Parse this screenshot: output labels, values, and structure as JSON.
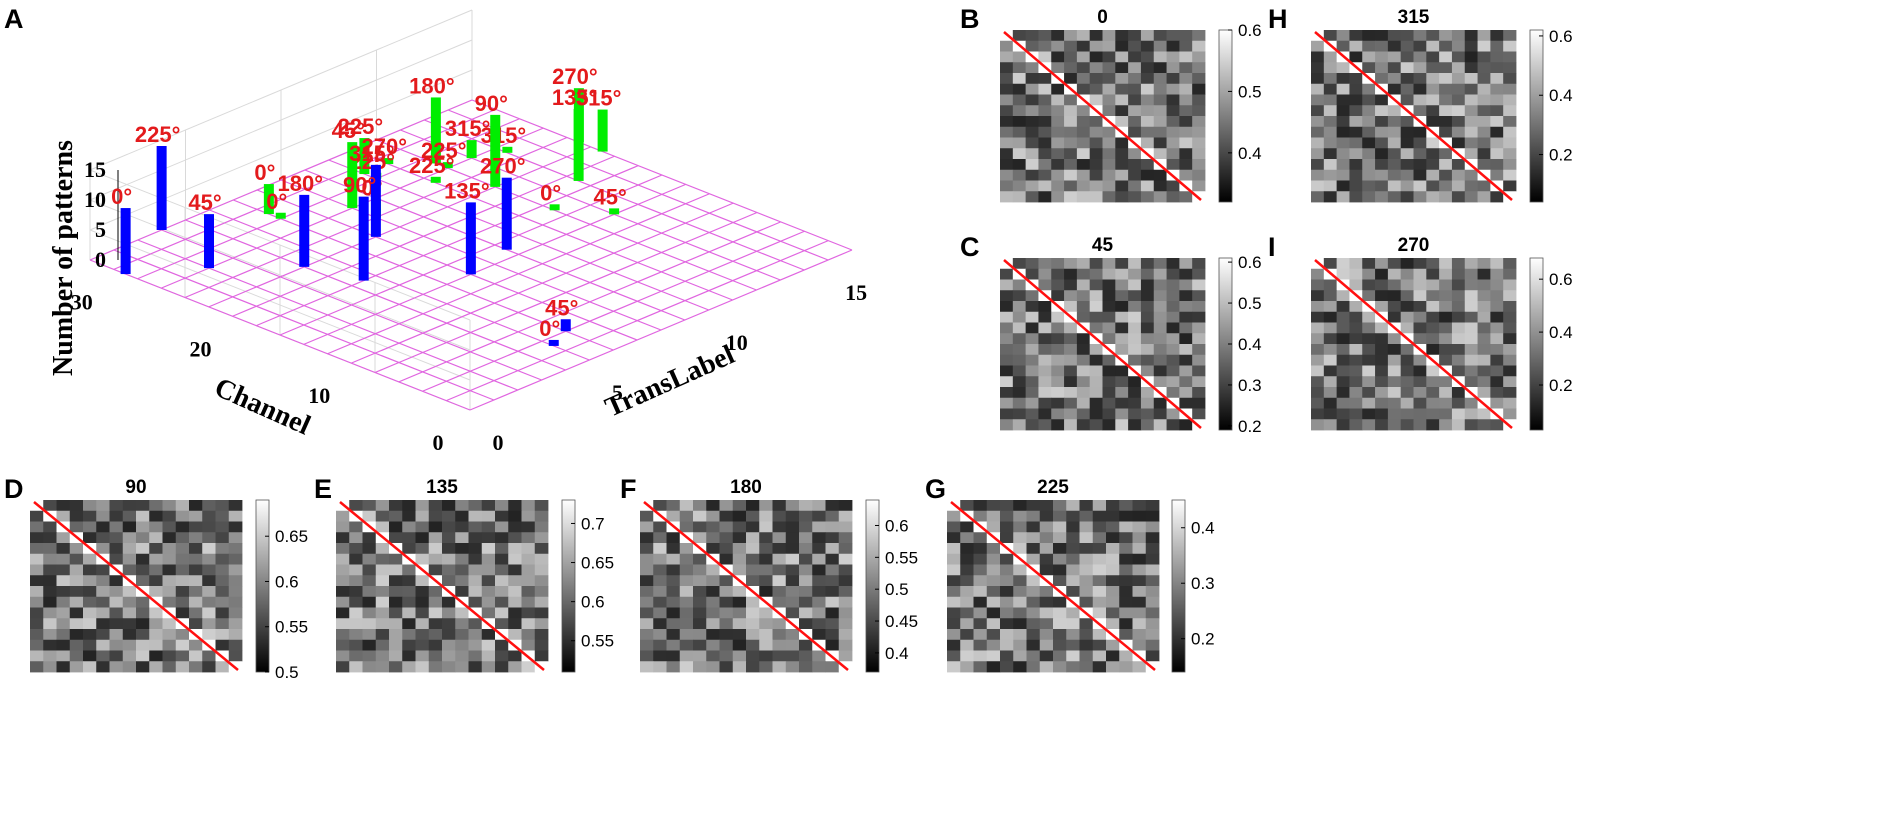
{
  "chart_data": {
    "panel_a": {
      "label": "A",
      "type": "bar3d",
      "zlabel": "Number of patterns",
      "xlabel": "TransLabel",
      "ylabel": "Channel",
      "x_ticks": [
        "0",
        "5",
        "10",
        "15"
      ],
      "y_ticks": [
        "0",
        "10",
        "20",
        "30"
      ],
      "z_ticks": [
        "0",
        "5",
        "10",
        "15"
      ],
      "x_range": [
        0,
        16
      ],
      "y_range": [
        0,
        32
      ],
      "z_range": [
        0,
        15
      ],
      "bars": [
        {
          "x": 0,
          "y": 29,
          "z": 11,
          "label": "0°",
          "color": "#0000ff"
        },
        {
          "x": 2,
          "y": 26,
          "z": 9,
          "label": "45°",
          "color": "#0000ff"
        },
        {
          "x": 3,
          "y": 32,
          "z": 14,
          "label": "225°",
          "color": "#0000ff"
        },
        {
          "x": 4,
          "y": 22,
          "z": 12,
          "label": "180°",
          "color": "#0000ff"
        },
        {
          "x": 4.5,
          "y": 18,
          "z": 14,
          "label": "90°",
          "color": "#0000ff"
        },
        {
          "x": 7,
          "y": 22,
          "z": 12,
          "label": "315°",
          "color": "#0000ff"
        },
        {
          "x": 5,
          "y": 3,
          "z": 1,
          "label": "0°",
          "color": "#0000ff"
        },
        {
          "x": 6,
          "y": 4,
          "z": 2,
          "label": "45°",
          "color": "#0000ff"
        },
        {
          "x": 7,
          "y": 14,
          "z": 12,
          "label": "135°",
          "color": "#0000ff"
        },
        {
          "x": 9,
          "y": 15,
          "z": 12,
          "label": "270°",
          "color": "#0000ff"
        },
        {
          "x": 6,
          "y": 29,
          "z": 5,
          "label": "0°",
          "color": "#00ee00"
        },
        {
          "x": 6,
          "y": 28,
          "z": 1,
          "label": "0°",
          "color": "#00ee00"
        },
        {
          "x": 8,
          "y": 26,
          "z": 11,
          "label": "45°",
          "color": "#00ee00"
        },
        {
          "x": 8,
          "y": 24,
          "z": 3,
          "label": "0°",
          "color": "#00ee00"
        },
        {
          "x": 10,
          "y": 29,
          "z": 6,
          "label": "225°",
          "color": "#00ee00"
        },
        {
          "x": 10,
          "y": 28,
          "z": 1,
          "label": "225°",
          "color": "#00ee00"
        },
        {
          "x": 11,
          "y": 29,
          "z": 1,
          "label": "270°",
          "color": "#00ee00"
        },
        {
          "x": 11,
          "y": 25,
          "z": 1,
          "label": "225°",
          "color": "#00ee00"
        },
        {
          "x": 12,
          "y": 27,
          "z": 11,
          "label": "180°",
          "color": "#00ee00"
        },
        {
          "x": 12,
          "y": 26,
          "z": 1,
          "label": "225°",
          "color": "#00ee00"
        },
        {
          "x": 12,
          "y": 22,
          "z": 12,
          "label": "90°",
          "color": "#00ee00"
        },
        {
          "x": 12,
          "y": 17,
          "z": 1,
          "label": "0°",
          "color": "#00ee00"
        },
        {
          "x": 13,
          "y": 26,
          "z": 3,
          "label": "315°",
          "color": "#00ee00"
        },
        {
          "x": 14,
          "y": 25,
          "z": 1,
          "label": "315°",
          "color": "#00ee00"
        },
        {
          "x": 14,
          "y": 19,
          "z": 12,
          "label": "135°",
          "color": "#00ee00"
        },
        {
          "x": 13,
          "y": 14,
          "z": 1,
          "label": "45°",
          "color": "#00ee00"
        },
        {
          "x": 16,
          "y": 23,
          "z": 9,
          "label": "270°",
          "color": "#00ee00"
        },
        {
          "x": 16,
          "y": 21,
          "z": 7,
          "label": "315°",
          "color": "#00ee00"
        }
      ]
    },
    "heatmaps": [
      {
        "label": "B",
        "title": "0",
        "cmin": 0.32,
        "cmax": 0.6,
        "ticks": [
          "0.6",
          "0.5",
          "0.4"
        ],
        "tick_values": [
          0.6,
          0.5,
          0.4
        ],
        "seed": 11
      },
      {
        "label": "C",
        "title": "45",
        "cmin": 0.19,
        "cmax": 0.61,
        "ticks": [
          "0.6",
          "0.5",
          "0.4",
          "0.3",
          "0.2"
        ],
        "tick_values": [
          0.6,
          0.5,
          0.4,
          0.3,
          0.2
        ],
        "seed": 23
      },
      {
        "label": "H",
        "title": "315",
        "cmin": 0.04,
        "cmax": 0.62,
        "ticks": [
          "0.6",
          "0.4",
          "0.2"
        ],
        "tick_values": [
          0.6,
          0.4,
          0.2
        ],
        "seed": 37
      },
      {
        "label": "I",
        "title": "270",
        "cmin": 0.03,
        "cmax": 0.68,
        "ticks": [
          "0.6",
          "0.4",
          "0.2"
        ],
        "tick_values": [
          0.6,
          0.4,
          0.2
        ],
        "seed": 41
      },
      {
        "label": "D",
        "title": "90",
        "cmin": 0.5,
        "cmax": 0.69,
        "ticks": [
          "0.65",
          "0.6",
          "0.55",
          "0.5"
        ],
        "tick_values": [
          0.65,
          0.6,
          0.55,
          0.5
        ],
        "seed": 53
      },
      {
        "label": "E",
        "title": "135",
        "cmin": 0.51,
        "cmax": 0.73,
        "ticks": [
          "0.7",
          "0.65",
          "0.6",
          "0.55"
        ],
        "tick_values": [
          0.7,
          0.65,
          0.6,
          0.55
        ],
        "seed": 67
      },
      {
        "label": "F",
        "title": "180",
        "cmin": 0.37,
        "cmax": 0.64,
        "ticks": [
          "0.6",
          "0.55",
          "0.5",
          "0.45",
          "0.4"
        ],
        "tick_values": [
          0.6,
          0.55,
          0.5,
          0.45,
          0.4
        ],
        "seed": 79
      },
      {
        "label": "G",
        "title": "225",
        "cmin": 0.14,
        "cmax": 0.45,
        "ticks": [
          "0.4",
          "0.3",
          "0.2"
        ],
        "tick_values": [
          0.4,
          0.3,
          0.2
        ],
        "seed": 97
      }
    ]
  }
}
